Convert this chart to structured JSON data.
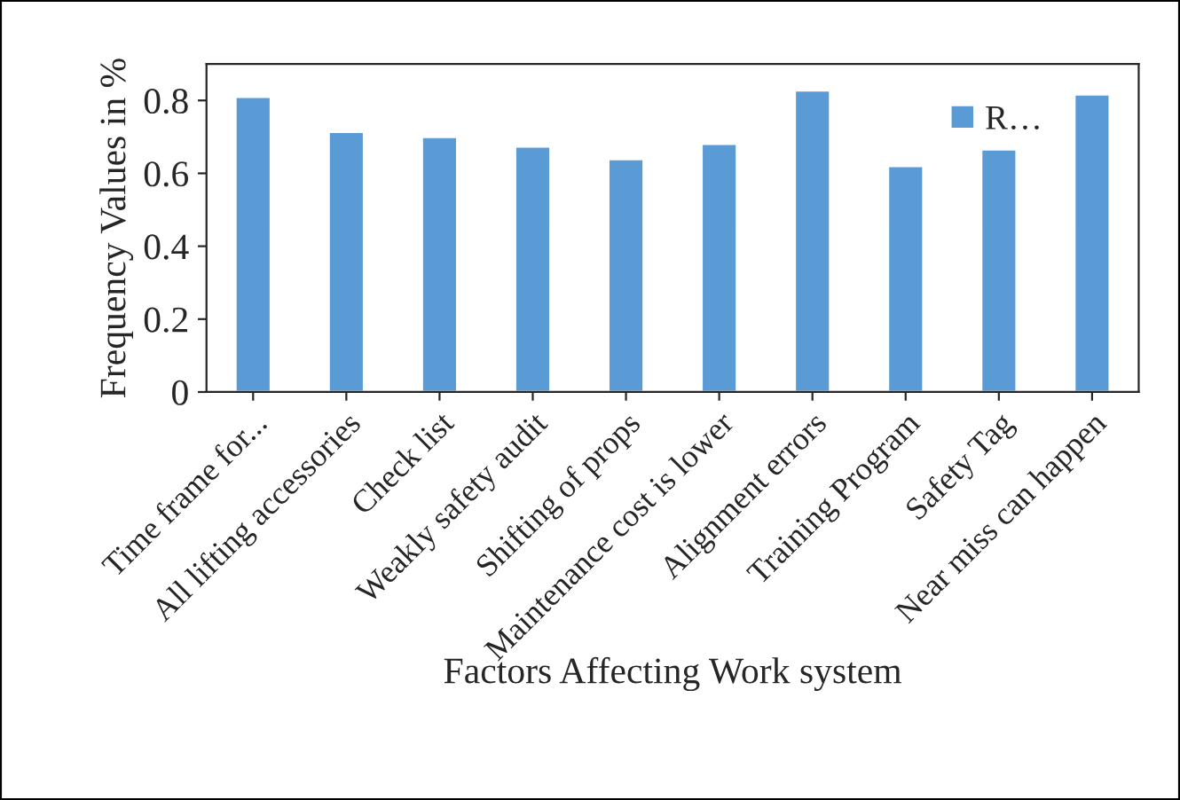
{
  "chart_data": {
    "type": "bar",
    "xlabel": "Factors Affecting Work system",
    "ylabel": "Frequency Values in %",
    "categories": [
      "Time frame for...",
      "All lifting accessories",
      "Check list",
      "Weakly safety audit",
      "Shifting of props",
      "Maintenance cost is lower",
      "Alignment errors",
      "Training Program",
      "Safety Tag",
      "Near miss can happen"
    ],
    "series": [
      {
        "name": "R…",
        "color": "#5b9bd5",
        "values": [
          0.81,
          0.714,
          0.7,
          0.674,
          0.639,
          0.681,
          0.828,
          0.62,
          0.666,
          0.817
        ]
      }
    ],
    "ylim": [
      0,
      0.9
    ],
    "yticks": [
      0,
      0.2,
      0.4,
      0.6,
      0.8
    ],
    "grid": false,
    "legend": "top right"
  }
}
